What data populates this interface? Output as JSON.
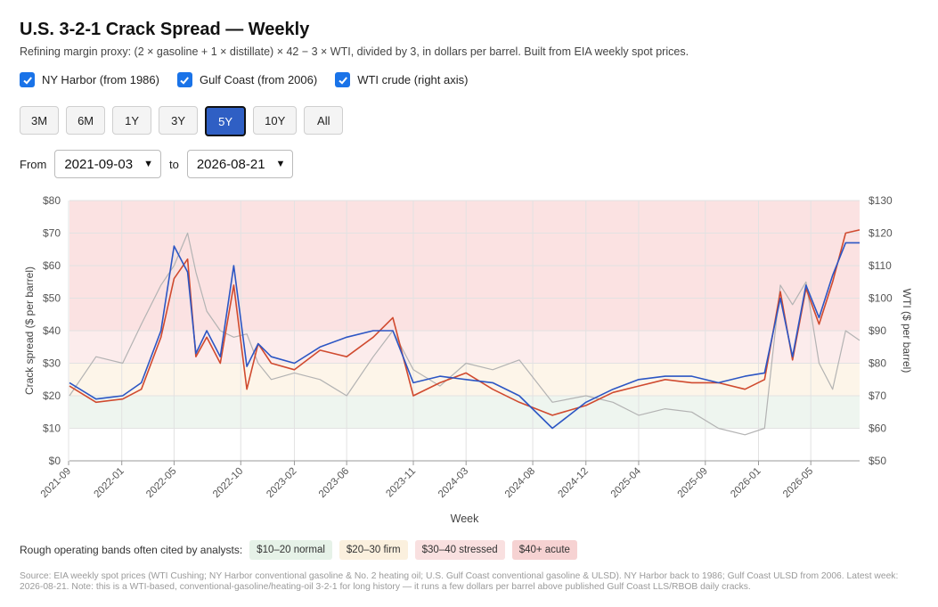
{
  "title": "U.S. 3-2-1 Crack Spread — Weekly",
  "subtitle": "Refining margin proxy: (2 × gasoline + 1 × distillate) × 42 − 3 × WTI, divided by 3, in dollars per barrel. Built from EIA weekly spot prices.",
  "toggles": [
    {
      "label": "NY Harbor (from 1986)",
      "checked": true
    },
    {
      "label": "Gulf Coast (from 2006)",
      "checked": true
    },
    {
      "label": "WTI crude (right axis)",
      "checked": true
    }
  ],
  "ranges": [
    "3M",
    "6M",
    "1Y",
    "3Y",
    "5Y",
    "10Y",
    "All"
  ],
  "active_range": "5Y",
  "date_range": {
    "from_label": "From",
    "from": "2021-09-03",
    "to_label": "to",
    "to": "2026-08-21"
  },
  "bands_label": "Rough operating bands often cited by analysts:",
  "bands": [
    {
      "label": "$10–20 normal",
      "color": "#e6f2e8"
    },
    {
      "label": "$20–30 firm",
      "color": "#fbf0de"
    },
    {
      "label": "$30–40 stressed",
      "color": "#f9e0e0"
    },
    {
      "label": "$40+ acute",
      "color": "#f6d2d2"
    }
  ],
  "source": "Source: EIA weekly spot prices (WTI Cushing; NY Harbor conventional gasoline & No. 2 heating oil; U.S. Gulf Coast conventional gasoline & ULSD). NY Harbor back to 1986; Gulf Coast ULSD from 2006. Latest week: 2026-08-21. Note: this is a WTI-based, conventional-gasoline/heating-oil 3-2-1 for long history — it runs a few dollars per barrel above published Gulf Coast LLS/RBOB daily cracks.",
  "colors": {
    "ny": "#d04a2f",
    "gulf": "#2c56c4",
    "wti": "#b3b3b3",
    "accent": "#2f5fc4"
  },
  "chart_data": {
    "type": "line",
    "xlabel": "Week",
    "ylabel": "Crack spread ($ per barrel)",
    "y2label": "WTI ($ per barrel)",
    "ylim": [
      0,
      80
    ],
    "y2lim": [
      50,
      130
    ],
    "yticks": [
      "$0",
      "$10",
      "$20",
      "$30",
      "$40",
      "$50",
      "$60",
      "$70",
      "$80"
    ],
    "y2ticks": [
      "$50",
      "$60",
      "$70",
      "$80",
      "$90",
      "$100",
      "$110",
      "$120",
      "$130"
    ],
    "xticks": [
      "2021-09",
      "2022-01",
      "2022-05",
      "2022-10",
      "2023-02",
      "2023-06",
      "2023-11",
      "2024-03",
      "2024-08",
      "2024-12",
      "2025-04",
      "2025-09",
      "2026-01",
      "2026-05"
    ],
    "shaded_bands": [
      {
        "from": 0,
        "to": 10,
        "color": "#ffffff"
      },
      {
        "from": 10,
        "to": 20,
        "color": "#eef5ef"
      },
      {
        "from": 20,
        "to": 30,
        "color": "#fdf5e9"
      },
      {
        "from": 30,
        "to": 40,
        "color": "#fcecec"
      },
      {
        "from": 40,
        "to": 80,
        "color": "#fbe2e2"
      }
    ],
    "x": [
      "2021-09-03",
      "2021-11-03",
      "2022-01-03",
      "2022-02-15",
      "2022-04-01",
      "2022-05-01",
      "2022-06-01",
      "2022-06-20",
      "2022-07-15",
      "2022-08-15",
      "2022-09-15",
      "2022-10-15",
      "2022-11-10",
      "2022-12-10",
      "2023-02-01",
      "2023-04-01",
      "2023-06-01",
      "2023-08-01",
      "2023-09-15",
      "2023-11-01",
      "2024-01-01",
      "2024-03-01",
      "2024-05-01",
      "2024-07-01",
      "2024-09-15",
      "2024-12-01",
      "2025-02-01",
      "2025-04-01",
      "2025-06-01",
      "2025-08-01",
      "2025-10-01",
      "2025-12-01",
      "2026-01-15",
      "2026-02-20",
      "2026-03-20",
      "2026-04-20",
      "2026-05-20",
      "2026-06-20",
      "2026-07-20",
      "2026-08-21"
    ],
    "series": [
      {
        "name": "NY Harbor (from 1986)",
        "axis": "left",
        "values": [
          23,
          18,
          19,
          22,
          38,
          56,
          62,
          32,
          38,
          30,
          54,
          22,
          36,
          30,
          28,
          34,
          32,
          38,
          44,
          20,
          24,
          27,
          22,
          18,
          14,
          17,
          21,
          23,
          25,
          24,
          24,
          22,
          25,
          52,
          31,
          53,
          42,
          55,
          70,
          71
        ]
      },
      {
        "name": "Gulf Coast (from 2006)",
        "axis": "left",
        "values": [
          24,
          19,
          20,
          24,
          40,
          66,
          58,
          33,
          40,
          32,
          60,
          29,
          36,
          32,
          30,
          35,
          38,
          40,
          40,
          24,
          26,
          25,
          24,
          20,
          10,
          18,
          22,
          25,
          26,
          26,
          24,
          26,
          27,
          50,
          32,
          54,
          44,
          57,
          67,
          67
        ]
      },
      {
        "name": "WTI crude (right axis)",
        "axis": "right",
        "values": [
          70,
          82,
          80,
          92,
          104,
          110,
          120,
          108,
          96,
          90,
          88,
          89,
          80,
          75,
          77,
          75,
          70,
          82,
          90,
          78,
          73,
          80,
          78,
          81,
          68,
          70,
          68,
          64,
          66,
          65,
          60,
          58,
          60,
          104,
          98,
          105,
          80,
          72,
          90,
          87
        ]
      }
    ]
  }
}
